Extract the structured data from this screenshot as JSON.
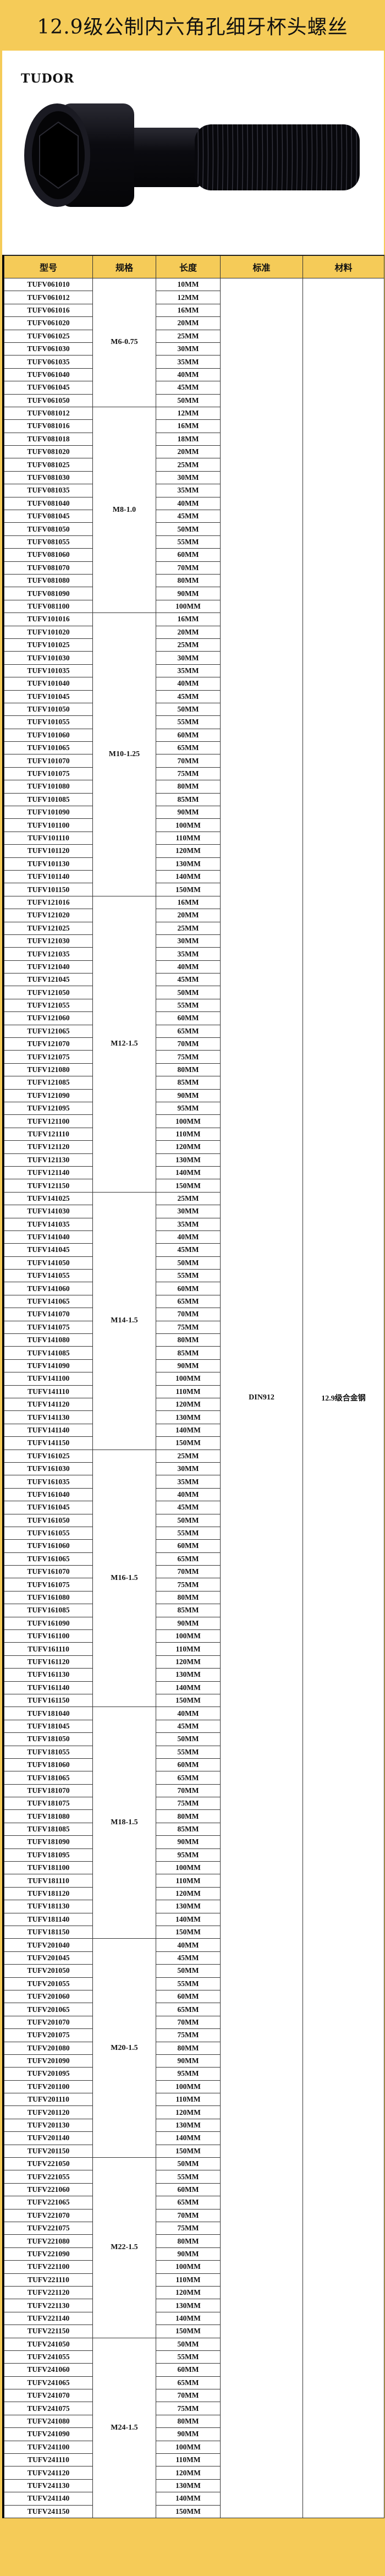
{
  "title": "12.9级公制内六角孔细牙杯头螺丝",
  "brand": "TUDOR",
  "product_image": "black-socket-head-cap-screw",
  "colors": {
    "accent": "#f5cb58",
    "border": "#333333"
  },
  "table": {
    "headers": [
      "型号",
      "规格",
      "长度",
      "标准",
      "材料"
    ],
    "standard": "DIN912",
    "material": "12.9级合金钢",
    "groups": [
      {
        "spec": "M6-0.75",
        "rows": [
          [
            "TUFV061010",
            "10MM"
          ],
          [
            "TUFV061012",
            "12MM"
          ],
          [
            "TUFV061016",
            "16MM"
          ],
          [
            "TUFV061020",
            "20MM"
          ],
          [
            "TUFV061025",
            "25MM"
          ],
          [
            "TUFV061030",
            "30MM"
          ],
          [
            "TUFV061035",
            "35MM"
          ],
          [
            "TUFV061040",
            "40MM"
          ],
          [
            "TUFV061045",
            "45MM"
          ],
          [
            "TUFV061050",
            "50MM"
          ]
        ]
      },
      {
        "spec": "M8-1.0",
        "rows": [
          [
            "TUFV081012",
            "12MM"
          ],
          [
            "TUFV081016",
            "16MM"
          ],
          [
            "TUFV081018",
            "18MM"
          ],
          [
            "TUFV081020",
            "20MM"
          ],
          [
            "TUFV081025",
            "25MM"
          ],
          [
            "TUFV081030",
            "30MM"
          ],
          [
            "TUFV081035",
            "35MM"
          ],
          [
            "TUFV081040",
            "40MM"
          ],
          [
            "TUFV081045",
            "45MM"
          ],
          [
            "TUFV081050",
            "50MM"
          ],
          [
            "TUFV081055",
            "55MM"
          ],
          [
            "TUFV081060",
            "60MM"
          ],
          [
            "TUFV081070",
            "70MM"
          ],
          [
            "TUFV081080",
            "80MM"
          ],
          [
            "TUFV081090",
            "90MM"
          ],
          [
            "TUFV081100",
            "100MM"
          ]
        ]
      },
      {
        "spec": "M10-1.25",
        "rows": [
          [
            "TUFV101016",
            "16MM"
          ],
          [
            "TUFV101020",
            "20MM"
          ],
          [
            "TUFV101025",
            "25MM"
          ],
          [
            "TUFV101030",
            "30MM"
          ],
          [
            "TUFV101035",
            "35MM"
          ],
          [
            "TUFV101040",
            "40MM"
          ],
          [
            "TUFV101045",
            "45MM"
          ],
          [
            "TUFV101050",
            "50MM"
          ],
          [
            "TUFV101055",
            "55MM"
          ],
          [
            "TUFV101060",
            "60MM"
          ],
          [
            "TUFV101065",
            "65MM"
          ],
          [
            "TUFV101070",
            "70MM"
          ],
          [
            "TUFV101075",
            "75MM"
          ],
          [
            "TUFV101080",
            "80MM"
          ],
          [
            "TUFV101085",
            "85MM"
          ],
          [
            "TUFV101090",
            "90MM"
          ],
          [
            "TUFV101100",
            "100MM"
          ],
          [
            "TUFV101110",
            "110MM"
          ],
          [
            "TUFV101120",
            "120MM"
          ],
          [
            "TUFV101130",
            "130MM"
          ],
          [
            "TUFV101140",
            "140MM"
          ],
          [
            "TUFV101150",
            "150MM"
          ]
        ]
      },
      {
        "spec": "M12-1.5",
        "rows": [
          [
            "TUFV121016",
            "16MM"
          ],
          [
            "TUFV121020",
            "20MM"
          ],
          [
            "TUFV121025",
            "25MM"
          ],
          [
            "TUFV121030",
            "30MM"
          ],
          [
            "TUFV121035",
            "35MM"
          ],
          [
            "TUFV121040",
            "40MM"
          ],
          [
            "TUFV121045",
            "45MM"
          ],
          [
            "TUFV121050",
            "50MM"
          ],
          [
            "TUFV121055",
            "55MM"
          ],
          [
            "TUFV121060",
            "60MM"
          ],
          [
            "TUFV121065",
            "65MM"
          ],
          [
            "TUFV121070",
            "70MM"
          ],
          [
            "TUFV121075",
            "75MM"
          ],
          [
            "TUFV121080",
            "80MM"
          ],
          [
            "TUFV121085",
            "85MM"
          ],
          [
            "TUFV121090",
            "90MM"
          ],
          [
            "TUFV121095",
            "95MM"
          ],
          [
            "TUFV121100",
            "100MM"
          ],
          [
            "TUFV121110",
            "110MM"
          ],
          [
            "TUFV121120",
            "120MM"
          ],
          [
            "TUFV121130",
            "130MM"
          ],
          [
            "TUFV121140",
            "140MM"
          ],
          [
            "TUFV121150",
            "150MM"
          ]
        ]
      },
      {
        "spec": "M14-1.5",
        "rows": [
          [
            "TUFV141025",
            "25MM"
          ],
          [
            "TUFV141030",
            "30MM"
          ],
          [
            "TUFV141035",
            "35MM"
          ],
          [
            "TUFV141040",
            "40MM"
          ],
          [
            "TUFV141045",
            "45MM"
          ],
          [
            "TUFV141050",
            "50MM"
          ],
          [
            "TUFV141055",
            "55MM"
          ],
          [
            "TUFV141060",
            "60MM"
          ],
          [
            "TUFV141065",
            "65MM"
          ],
          [
            "TUFV141070",
            "70MM"
          ],
          [
            "TUFV141075",
            "75MM"
          ],
          [
            "TUFV141080",
            "80MM"
          ],
          [
            "TUFV141085",
            "85MM"
          ],
          [
            "TUFV141090",
            "90MM"
          ],
          [
            "TUFV141100",
            "100MM"
          ],
          [
            "TUFV141110",
            "110MM"
          ],
          [
            "TUFV141120",
            "120MM"
          ],
          [
            "TUFV141130",
            "130MM"
          ],
          [
            "TUFV141140",
            "140MM"
          ],
          [
            "TUFV141150",
            "150MM"
          ]
        ]
      },
      {
        "spec": "M16-1.5",
        "rows": [
          [
            "TUFV161025",
            "25MM"
          ],
          [
            "TUFV161030",
            "30MM"
          ],
          [
            "TUFV161035",
            "35MM"
          ],
          [
            "TUFV161040",
            "40MM"
          ],
          [
            "TUFV161045",
            "45MM"
          ],
          [
            "TUFV161050",
            "50MM"
          ],
          [
            "TUFV161055",
            "55MM"
          ],
          [
            "TUFV161060",
            "60MM"
          ],
          [
            "TUFV161065",
            "65MM"
          ],
          [
            "TUFV161070",
            "70MM"
          ],
          [
            "TUFV161075",
            "75MM"
          ],
          [
            "TUFV161080",
            "80MM"
          ],
          [
            "TUFV161085",
            "85MM"
          ],
          [
            "TUFV161090",
            "90MM"
          ],
          [
            "TUFV161100",
            "100MM"
          ],
          [
            "TUFV161110",
            "110MM"
          ],
          [
            "TUFV161120",
            "120MM"
          ],
          [
            "TUFV161130",
            "130MM"
          ],
          [
            "TUFV161140",
            "140MM"
          ],
          [
            "TUFV161150",
            "150MM"
          ]
        ]
      },
      {
        "spec": "M18-1.5",
        "rows": [
          [
            "TUFV181040",
            "40MM"
          ],
          [
            "TUFV181045",
            "45MM"
          ],
          [
            "TUFV181050",
            "50MM"
          ],
          [
            "TUFV181055",
            "55MM"
          ],
          [
            "TUFV181060",
            "60MM"
          ],
          [
            "TUFV181065",
            "65MM"
          ],
          [
            "TUFV181070",
            "70MM"
          ],
          [
            "TUFV181075",
            "75MM"
          ],
          [
            "TUFV181080",
            "80MM"
          ],
          [
            "TUFV181085",
            "85MM"
          ],
          [
            "TUFV181090",
            "90MM"
          ],
          [
            "TUFV181095",
            "95MM"
          ],
          [
            "TUFV181100",
            "100MM"
          ],
          [
            "TUFV181110",
            "110MM"
          ],
          [
            "TUFV181120",
            "120MM"
          ],
          [
            "TUFV181130",
            "130MM"
          ],
          [
            "TUFV181140",
            "140MM"
          ],
          [
            "TUFV181150",
            "150MM"
          ]
        ]
      },
      {
        "spec": "M20-1.5",
        "rows": [
          [
            "TUFV201040",
            "40MM"
          ],
          [
            "TUFV201045",
            "45MM"
          ],
          [
            "TUFV201050",
            "50MM"
          ],
          [
            "TUFV201055",
            "55MM"
          ],
          [
            "TUFV201060",
            "60MM"
          ],
          [
            "TUFV201065",
            "65MM"
          ],
          [
            "TUFV201070",
            "70MM"
          ],
          [
            "TUFV201075",
            "75MM"
          ],
          [
            "TUFV201080",
            "80MM"
          ],
          [
            "TUFV201090",
            "90MM"
          ],
          [
            "TUFV201095",
            "95MM"
          ],
          [
            "TUFV201100",
            "100MM"
          ],
          [
            "TUFV201110",
            "110MM"
          ],
          [
            "TUFV201120",
            "120MM"
          ],
          [
            "TUFV201130",
            "130MM"
          ],
          [
            "TUFV201140",
            "140MM"
          ],
          [
            "TUFV201150",
            "150MM"
          ]
        ]
      },
      {
        "spec": "M22-1.5",
        "rows": [
          [
            "TUFV221050",
            "50MM"
          ],
          [
            "TUFV221055",
            "55MM"
          ],
          [
            "TUFV221060",
            "60MM"
          ],
          [
            "TUFV221065",
            "65MM"
          ],
          [
            "TUFV221070",
            "70MM"
          ],
          [
            "TUFV221075",
            "75MM"
          ],
          [
            "TUFV221080",
            "80MM"
          ],
          [
            "TUFV221090",
            "90MM"
          ],
          [
            "TUFV221100",
            "100MM"
          ],
          [
            "TUFV221110",
            "110MM"
          ],
          [
            "TUFV221120",
            "120MM"
          ],
          [
            "TUFV221130",
            "130MM"
          ],
          [
            "TUFV221140",
            "140MM"
          ],
          [
            "TUFV221150",
            "150MM"
          ]
        ]
      },
      {
        "spec": "M24-1.5",
        "rows": [
          [
            "TUFV241050",
            "50MM"
          ],
          [
            "TUFV241055",
            "55MM"
          ],
          [
            "TUFV241060",
            "60MM"
          ],
          [
            "TUFV241065",
            "65MM"
          ],
          [
            "TUFV241070",
            "70MM"
          ],
          [
            "TUFV241075",
            "75MM"
          ],
          [
            "TUFV241080",
            "80MM"
          ],
          [
            "TUFV241090",
            "90MM"
          ],
          [
            "TUFV241100",
            "100MM"
          ],
          [
            "TUFV241110",
            "110MM"
          ],
          [
            "TUFV241120",
            "120MM"
          ],
          [
            "TUFV241130",
            "130MM"
          ],
          [
            "TUFV241140",
            "140MM"
          ],
          [
            "TUFV241150",
            "150MM"
          ]
        ]
      }
    ]
  }
}
